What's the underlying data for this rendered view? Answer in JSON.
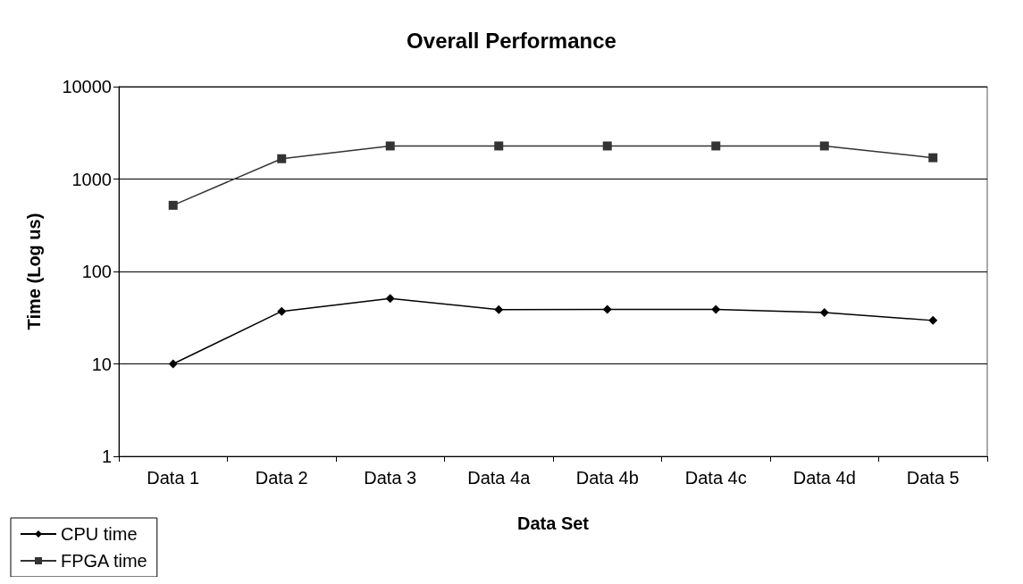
{
  "chart_data": {
    "type": "line",
    "title": "Overall Performance",
    "xlabel": "Data Set",
    "ylabel": "Time (Log us)",
    "categories": [
      "Data 1",
      "Data 2",
      "Data 3",
      "Data 4a",
      "Data 4b",
      "Data 4c",
      "Data 4d",
      "Data 5"
    ],
    "series": [
      {
        "name": "CPU time",
        "color": "#000000",
        "marker": "diamond",
        "values": [
          10,
          37,
          51,
          38.6,
          38.8,
          38.8,
          36,
          29.5
        ]
      },
      {
        "name": "FPGA time",
        "color": "#333333",
        "marker": "square",
        "values": [
          520,
          1660,
          2280,
          2280,
          2280,
          2280,
          2280,
          1700
        ]
      }
    ],
    "log": "y",
    "ylim": [
      1,
      10000
    ],
    "yticks": [
      1,
      10,
      100,
      1000,
      10000
    ],
    "grid": "y",
    "legend": "bottom left",
    "line_style": "solid"
  }
}
